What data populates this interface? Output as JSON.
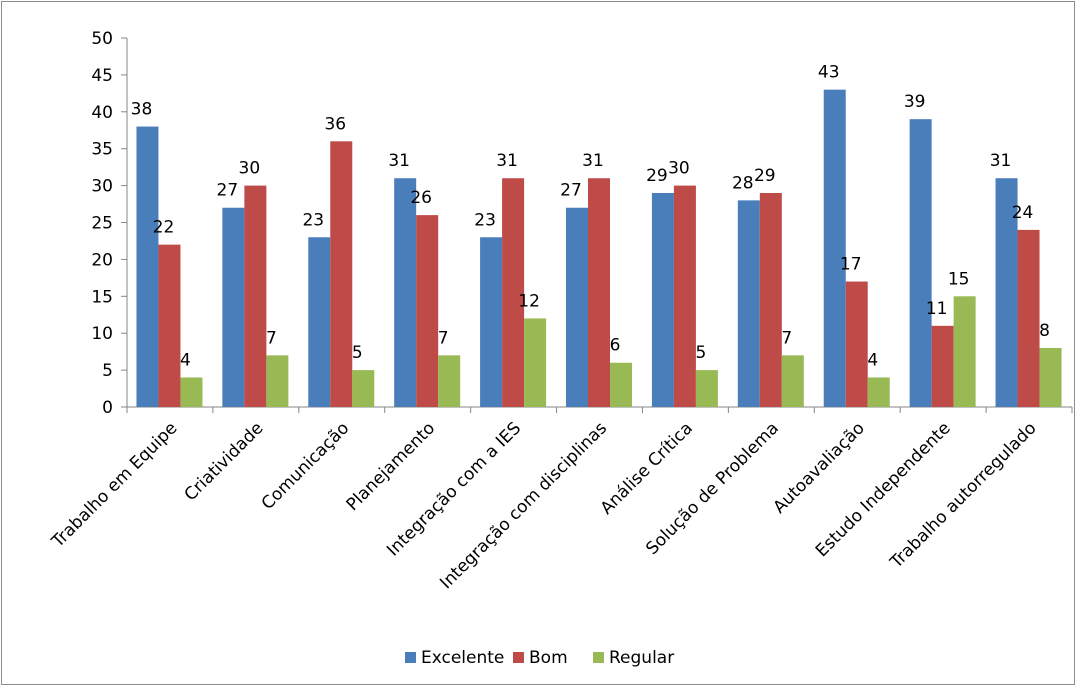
{
  "chart_data": {
    "type": "bar",
    "title": "",
    "xlabel": "",
    "ylabel": "",
    "ylim": [
      0,
      50
    ],
    "yticks": [
      0,
      5,
      10,
      15,
      20,
      25,
      30,
      35,
      40,
      45,
      50
    ],
    "grid": false,
    "legend_position": "bottom",
    "categories": [
      "Trabalho em Equipe",
      "Criatividade",
      "Comunicação",
      "Planejamento",
      "Integração com a IES",
      "Integração com disciplinas",
      "Análise Crítica",
      "Solução de Problema",
      "Autoavaliação",
      "Estudo Independente",
      "Trabalho autorregulado"
    ],
    "series": [
      {
        "name": "Excelente",
        "color": "#4a7ebb",
        "values": [
          38,
          27,
          23,
          31,
          23,
          27,
          29,
          28,
          43,
          39,
          31
        ]
      },
      {
        "name": "Bom",
        "color": "#be4b48",
        "values": [
          22,
          30,
          36,
          26,
          31,
          31,
          30,
          29,
          17,
          11,
          24
        ]
      },
      {
        "name": "Regular",
        "color": "#98b954",
        "values": [
          4,
          7,
          5,
          7,
          12,
          6,
          5,
          7,
          4,
          15,
          8
        ]
      }
    ]
  }
}
